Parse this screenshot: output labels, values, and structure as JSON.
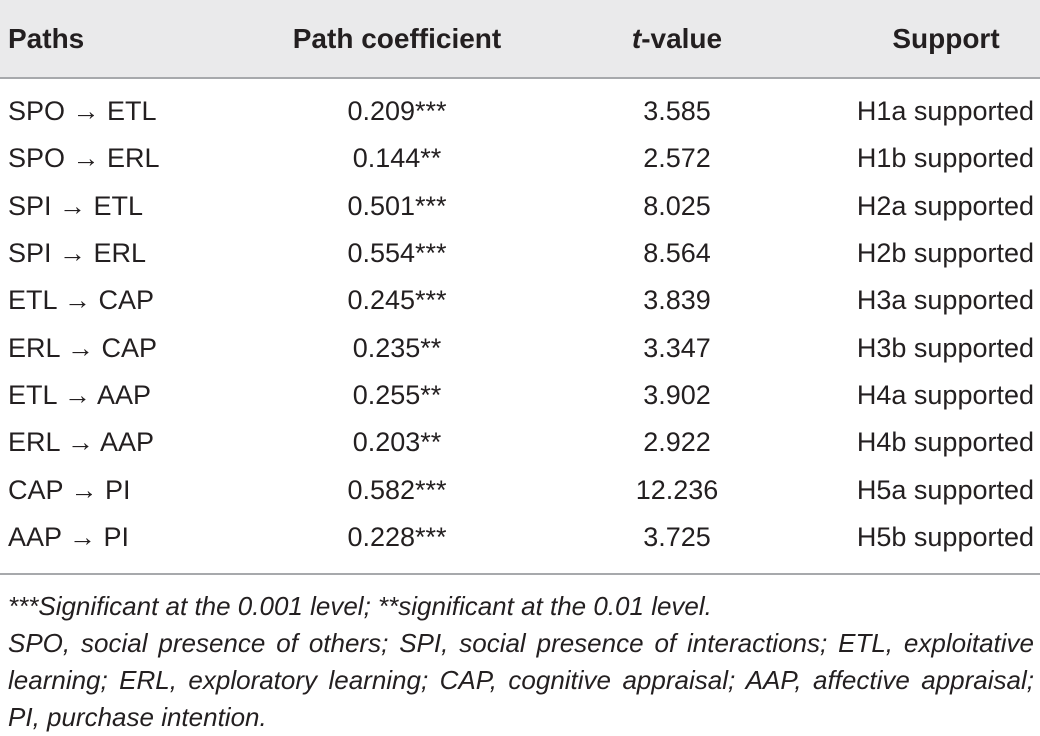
{
  "table": {
    "headers": {
      "paths": "Paths",
      "coefficient": "Path coefficient",
      "t_prefix": "t",
      "t_suffix": "-value",
      "support": "Support"
    },
    "rows": [
      {
        "path": "SPO → ETL",
        "coefficient": "0.209***",
        "t_value": "3.585",
        "support": "H1a supported"
      },
      {
        "path": "SPO → ERL",
        "coefficient": "0.144**",
        "t_value": "2.572",
        "support": "H1b supported"
      },
      {
        "path": "SPI → ETL",
        "coefficient": "0.501***",
        "t_value": "8.025",
        "support": "H2a supported"
      },
      {
        "path": "SPI → ERL",
        "coefficient": "0.554***",
        "t_value": "8.564",
        "support": "H2b supported"
      },
      {
        "path": "ETL → CAP",
        "coefficient": "0.245***",
        "t_value": "3.839",
        "support": "H3a supported"
      },
      {
        "path": "ERL → CAP",
        "coefficient": "0.235**",
        "t_value": "3.347",
        "support": "H3b supported"
      },
      {
        "path": "ETL → AAP",
        "coefficient": "0.255**",
        "t_value": "3.902",
        "support": "H4a supported"
      },
      {
        "path": "ERL → AAP",
        "coefficient": "0.203**",
        "t_value": "2.922",
        "support": "H4b supported"
      },
      {
        "path": "CAP → PI",
        "coefficient": "0.582***",
        "t_value": "12.236",
        "support": "H5a supported"
      },
      {
        "path": "AAP → PI",
        "coefficient": "0.228***",
        "t_value": "3.725",
        "support": "H5b supported"
      }
    ]
  },
  "footnotes": {
    "significance": "***Significant at the 0.001 level; **significant at the 0.01 level.",
    "abbreviations": "SPO, social presence of others; SPI, social presence of interactions; ETL, exploitative learning; ERL, exploratory learning; CAP, cognitive appraisal; AAP, affective appraisal; PI, purchase intention."
  },
  "colors": {
    "header_background": "#eaeaeb",
    "rule": "#a7a9ac",
    "text": "#231f20"
  }
}
